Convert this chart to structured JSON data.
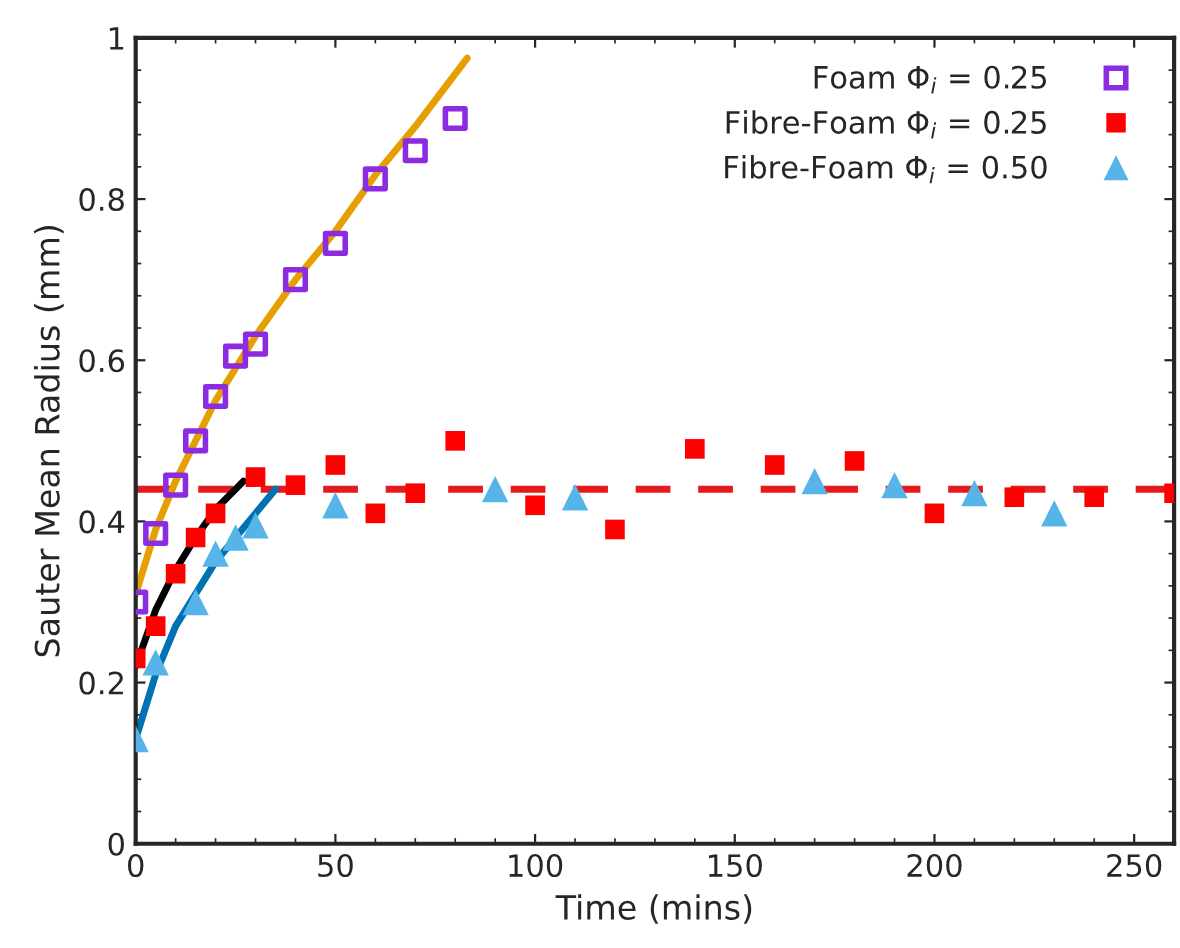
{
  "chart_data": {
    "type": "scatter",
    "xlabel": "Time (mins)",
    "ylabel": "Sauter Mean Radius (mm)",
    "xlim": [
      0,
      260
    ],
    "ylim": [
      0,
      1
    ],
    "xticks": [
      0,
      50,
      100,
      150,
      200,
      250
    ],
    "yticks": [
      0,
      0.2,
      0.4,
      0.6,
      0.8,
      1
    ],
    "grid": false,
    "legend": "top right",
    "series": [
      {
        "name": "Foam Φ$_{i}$ = 0.25",
        "marker": "square",
        "color": "#8b2be2",
        "x": [
          0,
          5,
          10,
          15,
          20,
          25,
          30,
          40,
          50,
          60,
          70,
          80
        ],
        "values": [
          0.3,
          0.385,
          0.445,
          0.5,
          0.555,
          0.605,
          0.62,
          0.7,
          0.745,
          0.825,
          0.86,
          0.9
        ]
      },
      {
        "name": "Fibre-Foam Φ$_{i}$ = 0.25",
        "marker": "square",
        "color": "#ff0000",
        "x": [
          0,
          5,
          10,
          15,
          20,
          30,
          40,
          50,
          60,
          70,
          80,
          100,
          120,
          140,
          160,
          180,
          200,
          220,
          240,
          260
        ],
        "values": [
          0.23,
          0.27,
          0.335,
          0.38,
          0.41,
          0.455,
          0.445,
          0.47,
          0.41,
          0.435,
          0.5,
          0.42,
          0.39,
          0.49,
          0.47,
          0.475,
          0.41,
          0.43,
          0.43,
          0.435
        ]
      },
      {
        "name": "Fibre-Foam Φ$_{i}$ = 0.50",
        "marker": "triangle",
        "color": "#56b4e9",
        "x": [
          0,
          5,
          15,
          20,
          25,
          30,
          50,
          90,
          110,
          170,
          190,
          210,
          230
        ],
        "values": [
          0.13,
          0.225,
          0.3,
          0.36,
          0.38,
          0.395,
          0.42,
          0.44,
          0.43,
          0.45,
          0.445,
          0.435,
          0.41
        ]
      },
      {
        "type": "line",
        "color": "#e69f00",
        "x": [
          0,
          5,
          10,
          20,
          30,
          40,
          50,
          60,
          70,
          83
        ],
        "values": [
          0.31,
          0.39,
          0.45,
          0.55,
          0.63,
          0.7,
          0.76,
          0.83,
          0.89,
          0.975
        ]
      },
      {
        "type": "line",
        "color": "#000000",
        "x": [
          0,
          5,
          10,
          15,
          20,
          27
        ],
        "values": [
          0.22,
          0.29,
          0.34,
          0.38,
          0.415,
          0.45
        ]
      },
      {
        "type": "line",
        "color": "#0072b2",
        "x": [
          0,
          5,
          10,
          15,
          20,
          25,
          30,
          35
        ],
        "values": [
          0.13,
          0.21,
          0.27,
          0.31,
          0.35,
          0.38,
          0.41,
          0.44
        ]
      }
    ],
    "ref_lines": [
      {
        "axis": "y",
        "value": 0.44,
        "color": "#e41a1c",
        "line_style": "dashed"
      }
    ]
  }
}
